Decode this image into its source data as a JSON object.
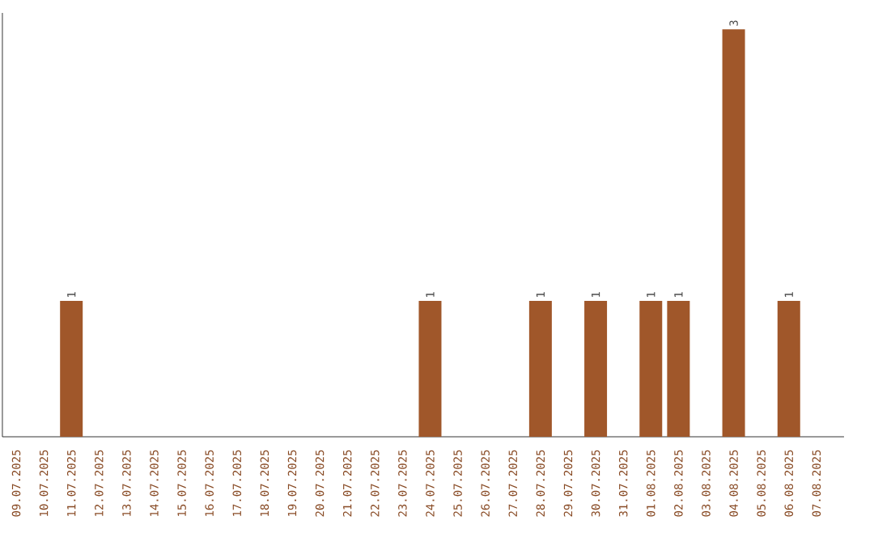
{
  "chart_data": {
    "type": "bar",
    "categories": [
      "09.07.2025",
      "10.07.2025",
      "11.07.2025",
      "12.07.2025",
      "13.07.2025",
      "14.07.2025",
      "15.07.2025",
      "16.07.2025",
      "17.07.2025",
      "18.07.2025",
      "19.07.2025",
      "20.07.2025",
      "21.07.2025",
      "22.07.2025",
      "23.07.2025",
      "24.07.2025",
      "25.07.2025",
      "26.07.2025",
      "27.07.2025",
      "28.07.2025",
      "29.07.2025",
      "30.07.2025",
      "31.07.2025",
      "01.08.2025",
      "02.08.2025",
      "03.08.2025",
      "04.08.2025",
      "05.08.2025",
      "06.08.2025",
      "07.08.2025"
    ],
    "values": [
      0,
      0,
      1,
      0,
      0,
      0,
      0,
      0,
      0,
      0,
      0,
      0,
      0,
      0,
      0,
      1,
      0,
      0,
      0,
      1,
      0,
      1,
      0,
      1,
      1,
      0,
      3,
      0,
      1,
      0
    ],
    "value_labels": [
      null,
      null,
      "1",
      null,
      null,
      null,
      null,
      null,
      null,
      null,
      null,
      null,
      null,
      null,
      null,
      "1",
      null,
      null,
      null,
      "1",
      null,
      "1",
      null,
      "1",
      "1",
      null,
      "3",
      null,
      "1",
      null
    ],
    "color": "#a0572a",
    "ylim": [
      0,
      3.12
    ]
  }
}
